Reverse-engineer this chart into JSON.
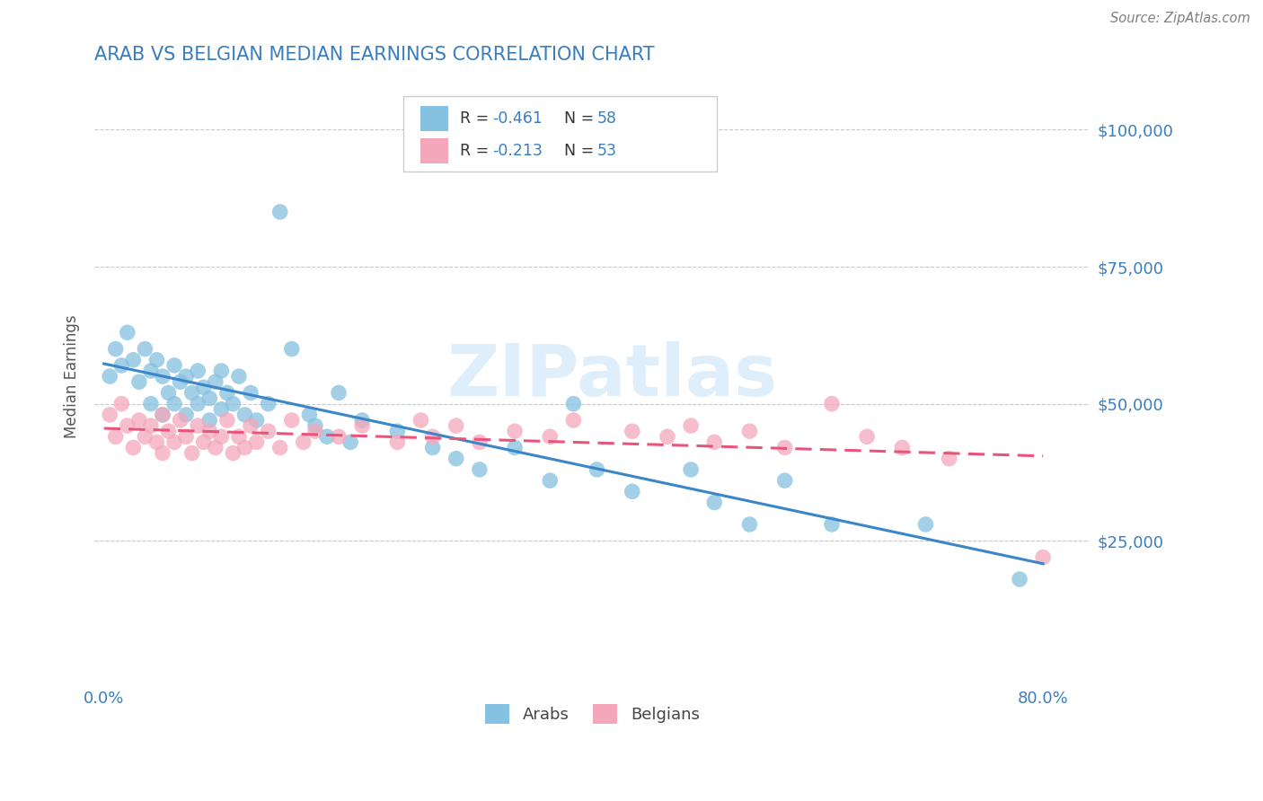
{
  "title": "ARAB VS BELGIAN MEDIAN EARNINGS CORRELATION CHART",
  "source": "Source: ZipAtlas.com",
  "ylabel": "Median Earnings",
  "yticks": [
    0,
    25000,
    50000,
    75000,
    100000
  ],
  "ytick_labels": [
    "",
    "$25,000",
    "$50,000",
    "$75,000",
    "$100,000"
  ],
  "ylim": [
    8000,
    110000
  ],
  "xlim": [
    -0.008,
    0.84
  ],
  "arab_color": "#85c1e0",
  "belgian_color": "#f4a7bb",
  "arab_line_color": "#3a86c8",
  "belgian_line_color": "#e8547a",
  "title_color": "#3a7ebf",
  "tick_color": "#3a7ebf",
  "grid_color": "#c8c8c8",
  "watermark": "ZIPatlas",
  "legend_R_arab": "-0.461",
  "legend_N_arab": "58",
  "legend_R_belgian": "-0.213",
  "legend_N_belgian": "53",
  "arab_x": [
    0.005,
    0.01,
    0.015,
    0.02,
    0.025,
    0.03,
    0.035,
    0.04,
    0.04,
    0.045,
    0.05,
    0.05,
    0.055,
    0.06,
    0.06,
    0.065,
    0.07,
    0.07,
    0.075,
    0.08,
    0.08,
    0.085,
    0.09,
    0.09,
    0.095,
    0.1,
    0.1,
    0.105,
    0.11,
    0.115,
    0.12,
    0.125,
    0.13,
    0.14,
    0.15,
    0.16,
    0.175,
    0.18,
    0.19,
    0.2,
    0.21,
    0.22,
    0.25,
    0.28,
    0.3,
    0.32,
    0.35,
    0.38,
    0.4,
    0.42,
    0.45,
    0.5,
    0.52,
    0.55,
    0.58,
    0.62,
    0.7,
    0.78
  ],
  "arab_y": [
    55000,
    60000,
    57000,
    63000,
    58000,
    54000,
    60000,
    56000,
    50000,
    58000,
    55000,
    48000,
    52000,
    57000,
    50000,
    54000,
    55000,
    48000,
    52000,
    56000,
    50000,
    53000,
    51000,
    47000,
    54000,
    56000,
    49000,
    52000,
    50000,
    55000,
    48000,
    52000,
    47000,
    50000,
    85000,
    60000,
    48000,
    46000,
    44000,
    52000,
    43000,
    47000,
    45000,
    42000,
    40000,
    38000,
    42000,
    36000,
    50000,
    38000,
    34000,
    38000,
    32000,
    28000,
    36000,
    28000,
    28000,
    18000
  ],
  "belgian_x": [
    0.005,
    0.01,
    0.015,
    0.02,
    0.025,
    0.03,
    0.035,
    0.04,
    0.045,
    0.05,
    0.05,
    0.055,
    0.06,
    0.065,
    0.07,
    0.075,
    0.08,
    0.085,
    0.09,
    0.095,
    0.1,
    0.105,
    0.11,
    0.115,
    0.12,
    0.125,
    0.13,
    0.14,
    0.15,
    0.16,
    0.17,
    0.18,
    0.2,
    0.22,
    0.25,
    0.27,
    0.28,
    0.3,
    0.32,
    0.35,
    0.38,
    0.4,
    0.45,
    0.48,
    0.5,
    0.52,
    0.55,
    0.58,
    0.62,
    0.65,
    0.68,
    0.72,
    0.8
  ],
  "belgian_y": [
    48000,
    44000,
    50000,
    46000,
    42000,
    47000,
    44000,
    46000,
    43000,
    48000,
    41000,
    45000,
    43000,
    47000,
    44000,
    41000,
    46000,
    43000,
    45000,
    42000,
    44000,
    47000,
    41000,
    44000,
    42000,
    46000,
    43000,
    45000,
    42000,
    47000,
    43000,
    45000,
    44000,
    46000,
    43000,
    47000,
    44000,
    46000,
    43000,
    45000,
    44000,
    47000,
    45000,
    44000,
    46000,
    43000,
    45000,
    42000,
    50000,
    44000,
    42000,
    40000,
    22000
  ]
}
